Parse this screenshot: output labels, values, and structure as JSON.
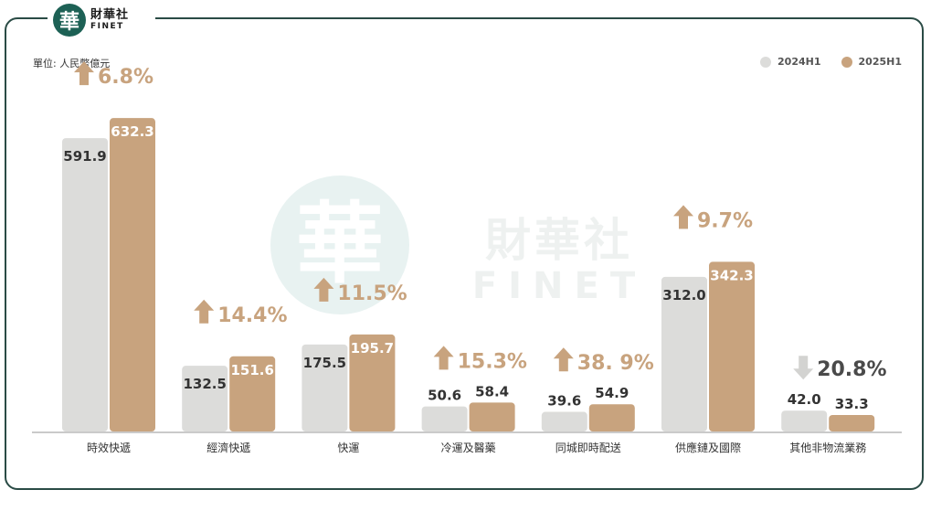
{
  "header": {
    "logo_zh": "財華社",
    "logo_en": "FINET",
    "logo_seal_char": "華"
  },
  "watermark": {
    "seal_char": "華",
    "zh": "財華社",
    "en": "FINET"
  },
  "colors": {
    "frame": "#2a4b45",
    "series_2024": "#dcdcda",
    "series_2025": "#c8a37e",
    "up_arrow": "#c8a37e",
    "down_arrow": "#d3d3d1",
    "baseline": "#aaaaaa",
    "watermark": "#e8f2f1"
  },
  "chart_data": {
    "type": "bar",
    "unit_label": "單位: 人民幣億元",
    "categories": [
      "時效快遞",
      "經濟快遞",
      "快運",
      "冷運及醫藥",
      "同城即時配送",
      "供應鏈及國際",
      "其他非物流業務"
    ],
    "series": [
      {
        "name": "2024H1",
        "values": [
          591.9,
          132.5,
          175.5,
          50.6,
          39.6,
          312.0,
          42.0
        ],
        "labels": [
          "591.9",
          "132.5",
          "175.5",
          "50.6",
          "39.6",
          "312.0",
          "42.0"
        ]
      },
      {
        "name": "2025H1",
        "values": [
          632.3,
          151.6,
          195.7,
          58.4,
          54.9,
          342.3,
          33.3
        ],
        "labels": [
          "632.3",
          "151.6",
          "195.7",
          "58.4",
          "54.9",
          "342.3",
          "33.3"
        ]
      }
    ],
    "changes": [
      {
        "label": "6.8%",
        "direction": "up"
      },
      {
        "label": "14.4%",
        "direction": "up"
      },
      {
        "label": "11.5%",
        "direction": "up"
      },
      {
        "label": "15.3%",
        "direction": "up"
      },
      {
        "label": "38. 9%",
        "direction": "up"
      },
      {
        "label": "9.7%",
        "direction": "up"
      },
      {
        "label": "20.8%",
        "direction": "down"
      }
    ],
    "ylim": [
      0,
      640
    ],
    "legend_position": "top-right",
    "grid": false
  }
}
